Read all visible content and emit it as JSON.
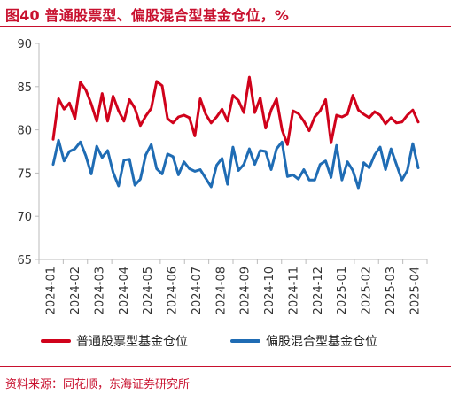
{
  "header": {
    "title": "图40  普通股票型、偏股混合型基金仓位，%"
  },
  "footer": {
    "source": "资料来源：同花顺，东海证券研究所"
  },
  "colors": {
    "accent": "#c8102e",
    "series_red": "#d0021b",
    "series_blue": "#1f6cb4",
    "axis": "#bbbbbb"
  },
  "chart_data": {
    "type": "line",
    "title": "图40  普通股票型、偏股混合型基金仓位，%",
    "xlabel": "",
    "ylabel": "",
    "ylim": [
      65,
      90
    ],
    "yticks": [
      "90",
      "85",
      "80",
      "75",
      "70",
      "65"
    ],
    "xticks": [
      "2024-01",
      "2024-02",
      "2024-03",
      "2024-04",
      "2024-05",
      "2024-06",
      "2024-07",
      "2024-08",
      "2024-09",
      "2024-10",
      "2024-11",
      "2024-12",
      "2025-01",
      "2025-02",
      "2025-03",
      "2025-04"
    ],
    "grid": false,
    "legend": "bottom",
    "series": [
      {
        "name": "普通股票型基金仓位",
        "color": "#d0021b",
        "values": [
          78.9,
          83.6,
          82.4,
          83.1,
          81.3,
          85.5,
          84.6,
          83.0,
          81.0,
          84.2,
          81.0,
          83.9,
          82.2,
          81.0,
          83.5,
          82.5,
          80.5,
          81.6,
          82.5,
          85.6,
          85.1,
          81.3,
          80.8,
          81.5,
          81.7,
          81.4,
          79.3,
          83.6,
          81.8,
          80.8,
          81.5,
          82.4,
          81.0,
          84.0,
          83.4,
          82.0,
          86.1,
          82.0,
          83.7,
          80.2,
          82.3,
          83.6,
          80.0,
          78.3,
          82.2,
          81.9,
          81.0,
          79.9,
          81.5,
          82.2,
          83.5,
          78.5,
          81.7,
          81.5,
          81.8,
          84.0,
          82.3,
          81.8,
          81.4,
          82.1,
          81.7,
          80.7,
          81.4,
          80.8,
          80.9,
          81.7,
          82.3,
          80.9
        ]
      },
      {
        "name": "偏股混合型基金仓位",
        "color": "#1f6cb4",
        "values": [
          76.0,
          78.8,
          76.4,
          77.5,
          77.8,
          78.6,
          77.0,
          74.9,
          78.1,
          76.8,
          77.6,
          75.1,
          73.5,
          76.5,
          76.6,
          73.6,
          74.3,
          77.1,
          78.3,
          75.5,
          74.9,
          77.2,
          76.9,
          74.8,
          76.3,
          75.5,
          75.2,
          75.4,
          74.4,
          73.4,
          75.9,
          76.7,
          73.7,
          78.0,
          75.3,
          76.0,
          77.8,
          76.0,
          77.6,
          77.5,
          75.4,
          77.8,
          78.6,
          74.6,
          74.8,
          74.3,
          75.4,
          74.2,
          74.2,
          76.0,
          76.4,
          74.5,
          78.2,
          74.2,
          76.3,
          75.3,
          73.3,
          76.2,
          75.6,
          77.1,
          78.0,
          75.4,
          77.8,
          76.0,
          74.2,
          75.3,
          78.4,
          75.6
        ]
      }
    ]
  }
}
